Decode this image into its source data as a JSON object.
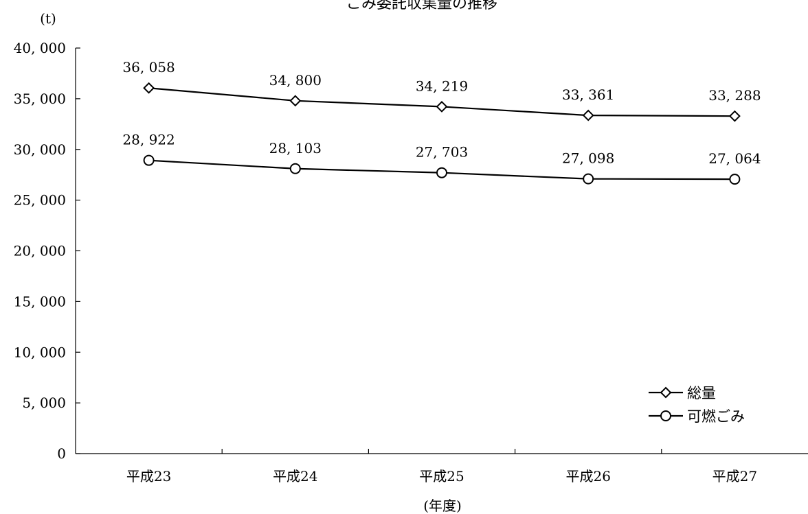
{
  "chart_data": {
    "type": "line",
    "title": "ごみ委託収集量の推移",
    "ylabel": "(t)",
    "xlabel": "(年度)",
    "categories": [
      "平成23",
      "平成24",
      "平成25",
      "平成26",
      "平成27"
    ],
    "ylim": [
      0,
      40000
    ],
    "yticks": [
      0,
      5000,
      10000,
      15000,
      20000,
      25000,
      30000,
      35000,
      40000
    ],
    "ytick_labels": [
      "0",
      "5, 000",
      "10, 000",
      "15, 000",
      "20, 000",
      "25, 000",
      "30, 000",
      "35, 000",
      "40, 000"
    ],
    "grid": false,
    "legend_position": "bottom-right",
    "series": [
      {
        "name": "総量",
        "marker": "diamond",
        "color": "#000000",
        "values": [
          36058,
          34800,
          34219,
          33361,
          33288
        ],
        "labels": [
          "36, 058",
          "34, 800",
          "34, 219",
          "33, 361",
          "33, 288"
        ]
      },
      {
        "name": "可燃ごみ",
        "marker": "circle",
        "color": "#000000",
        "values": [
          28922,
          28103,
          27703,
          27098,
          27064
        ],
        "labels": [
          "28, 922",
          "28, 103",
          "27, 703",
          "27, 098",
          "27, 064"
        ]
      }
    ]
  }
}
